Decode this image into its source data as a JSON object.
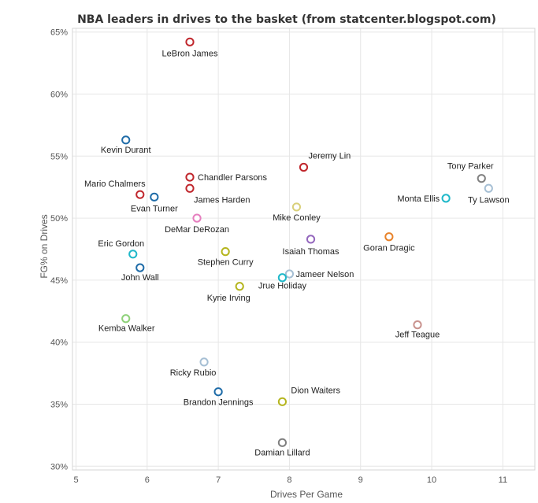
{
  "chart_data": {
    "type": "scatter",
    "title": "NBA leaders in drives to the basket (from statcenter.blogspot.com)",
    "xlabel": "Drives Per Game",
    "ylabel": "FG% on Drives",
    "xlim": [
      4.95,
      11.45
    ],
    "ylim": [
      29.7,
      65.3
    ],
    "xticks": [
      5,
      6,
      7,
      8,
      9,
      10,
      11
    ],
    "xtick_labels": [
      "5",
      "6",
      "7",
      "8",
      "9",
      "10",
      "11"
    ],
    "yticks": [
      30,
      35,
      40,
      45,
      50,
      55,
      60,
      65
    ],
    "ytick_labels": [
      "30%",
      "35%",
      "40%",
      "45%",
      "50%",
      "55%",
      "60%",
      "65%"
    ],
    "grid": true,
    "points": [
      {
        "name": "LeBron James",
        "x": 6.6,
        "y": 64.2,
        "color": "#c0272d"
      },
      {
        "name": "Kevin Durant",
        "x": 5.7,
        "y": 56.3,
        "color": "#1f6ca8"
      },
      {
        "name": "Jeremy Lin",
        "x": 8.2,
        "y": 54.1,
        "color": "#c0272d"
      },
      {
        "name": "Tony Parker",
        "x": 10.7,
        "y": 53.2,
        "color": "#7f7f7f"
      },
      {
        "name": "Ty Lawson",
        "x": 10.8,
        "y": 52.4,
        "color": "#a6bfd4"
      },
      {
        "name": "Chandler Parsons",
        "x": 6.6,
        "y": 53.3,
        "color": "#c0272d"
      },
      {
        "name": "James Harden",
        "x": 6.6,
        "y": 52.4,
        "color": "#c0272d"
      },
      {
        "name": "Mario Chalmers",
        "x": 5.9,
        "y": 51.9,
        "color": "#c0272d"
      },
      {
        "name": "Evan Turner",
        "x": 6.1,
        "y": 51.7,
        "color": "#1f6ca8"
      },
      {
        "name": "Monta Ellis",
        "x": 10.2,
        "y": 51.6,
        "color": "#1fb8c9"
      },
      {
        "name": "Mike Conley",
        "x": 8.1,
        "y": 50.9,
        "color": "#d9d07a"
      },
      {
        "name": "DeMar DeRozan",
        "x": 6.7,
        "y": 50.0,
        "color": "#e67fbf"
      },
      {
        "name": "Goran Dragic",
        "x": 9.4,
        "y": 48.5,
        "color": "#e8832b"
      },
      {
        "name": "Isaiah Thomas",
        "x": 8.3,
        "y": 48.3,
        "color": "#9467bd"
      },
      {
        "name": "Stephen Curry",
        "x": 7.1,
        "y": 47.3,
        "color": "#b5b51e"
      },
      {
        "name": "Eric Gordon",
        "x": 5.8,
        "y": 47.1,
        "color": "#1fb8c9"
      },
      {
        "name": "John Wall",
        "x": 5.9,
        "y": 46.0,
        "color": "#1f6ca8"
      },
      {
        "name": "Jameer Nelson",
        "x": 8.0,
        "y": 45.5,
        "color": "#a6bfd4"
      },
      {
        "name": "Jrue Holiday",
        "x": 7.9,
        "y": 45.2,
        "color": "#1fb8c9"
      },
      {
        "name": "Kyrie Irving",
        "x": 7.3,
        "y": 44.5,
        "color": "#b5b51e"
      },
      {
        "name": "Kemba Walker",
        "x": 5.7,
        "y": 41.9,
        "color": "#8fd17a"
      },
      {
        "name": "Jeff Teague",
        "x": 9.8,
        "y": 41.4,
        "color": "#c9938e"
      },
      {
        "name": "Ricky Rubio",
        "x": 6.8,
        "y": 38.4,
        "color": "#a6bfd4"
      },
      {
        "name": "Brandon Jennings",
        "x": 7.0,
        "y": 36.0,
        "color": "#1f6ca8"
      },
      {
        "name": "Dion Waiters",
        "x": 7.9,
        "y": 35.2,
        "color": "#b5b51e"
      },
      {
        "name": "Damian Lillard",
        "x": 7.9,
        "y": 31.9,
        "color": "#7f7f7f"
      }
    ]
  }
}
